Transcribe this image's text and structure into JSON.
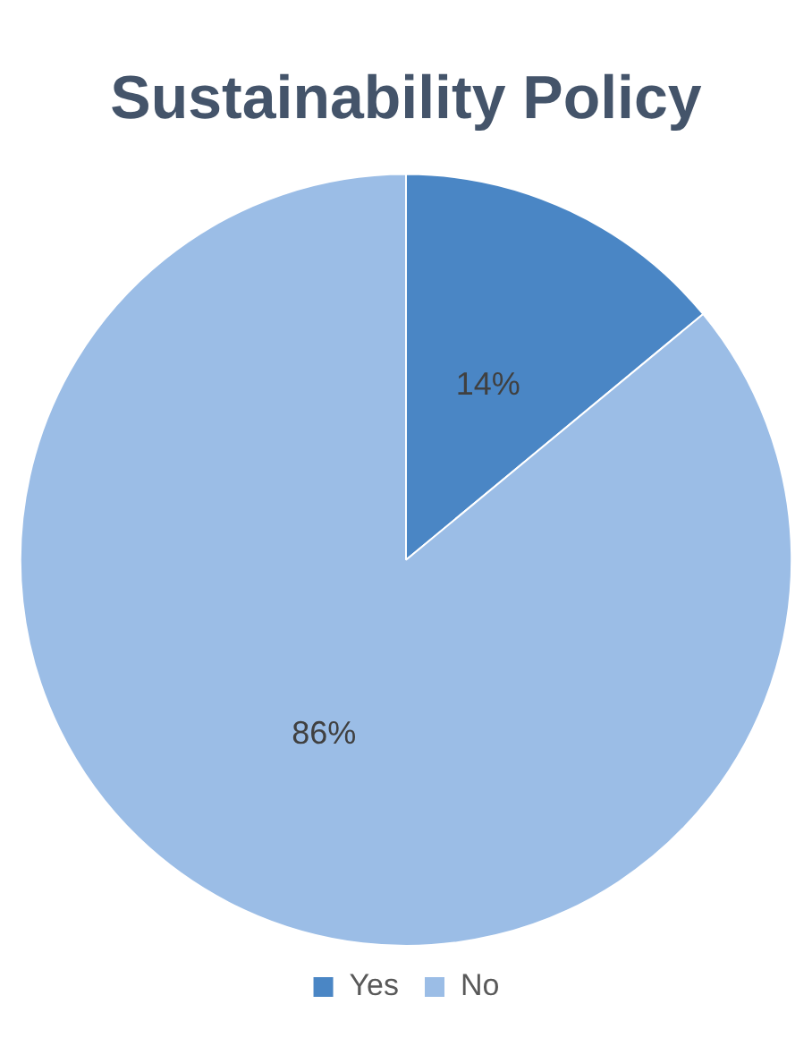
{
  "chart_data": {
    "type": "pie",
    "title": "Sustainability Policy",
    "categories": [
      "Yes",
      "No"
    ],
    "values": [
      14,
      86
    ],
    "colors": [
      "#4a86c5",
      "#9bbde6"
    ],
    "value_labels": [
      "14%",
      "86%"
    ],
    "legend": "bottom"
  }
}
